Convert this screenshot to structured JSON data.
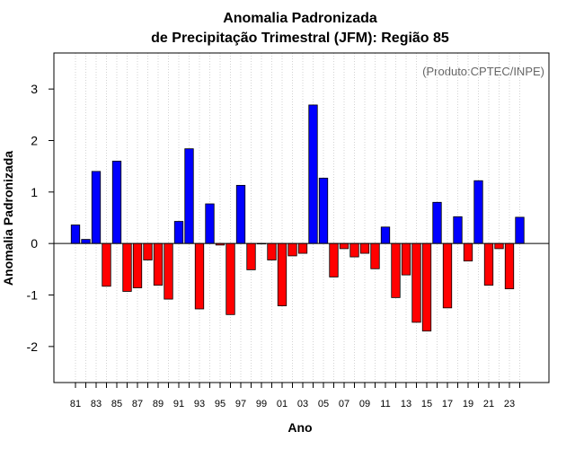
{
  "chart_data": {
    "type": "bar",
    "title": "Anomalia Padronizada",
    "subtitle": "de Precipitação Trimestral (JFM): Região 85",
    "xlabel": "Ano",
    "ylabel": "Anomalia Padronizada",
    "credit": "(Produto:CPTEC/INPE)",
    "ylim": [
      -2.7,
      3.7
    ],
    "yticks": [
      -2,
      -1,
      0,
      1,
      2,
      3
    ],
    "grid": "vertical-dotted",
    "colors": {
      "positive": "#0000ff",
      "negative": "#ff0000"
    },
    "categories": [
      "1981",
      "1982",
      "1983",
      "1984",
      "1985",
      "1986",
      "1987",
      "1988",
      "1989",
      "1990",
      "1991",
      "1992",
      "1993",
      "1994",
      "1995",
      "1996",
      "1997",
      "1998",
      "1999",
      "2000",
      "2001",
      "2002",
      "2003",
      "2004",
      "2005",
      "2006",
      "2007",
      "2008",
      "2009",
      "2010",
      "2011",
      "2012",
      "2013",
      "2014",
      "2015",
      "2016",
      "2017",
      "2018",
      "2019",
      "2020",
      "2021",
      "2022",
      "2023",
      "2024"
    ],
    "tick_labels": [
      "81",
      "83",
      "85",
      "87",
      "89",
      "91",
      "93",
      "95",
      "97",
      "99",
      "01",
      "03",
      "05",
      "07",
      "09",
      "11",
      "13",
      "15",
      "17",
      "19",
      "21",
      "23"
    ],
    "values": [
      0.36,
      0.08,
      1.4,
      -0.83,
      1.6,
      -0.93,
      -0.86,
      -0.32,
      -0.81,
      -1.08,
      0.43,
      1.84,
      -1.27,
      0.77,
      -0.03,
      -1.38,
      1.13,
      -0.51,
      0.0,
      -0.32,
      -1.21,
      -0.24,
      -0.19,
      2.69,
      1.27,
      -0.65,
      -0.1,
      -0.26,
      -0.19,
      -0.49,
      0.32,
      -1.05,
      -0.61,
      -1.53,
      -1.7,
      0.8,
      -1.25,
      0.52,
      -0.34,
      1.22,
      -0.81,
      -0.1,
      -0.88,
      0.51
    ]
  }
}
